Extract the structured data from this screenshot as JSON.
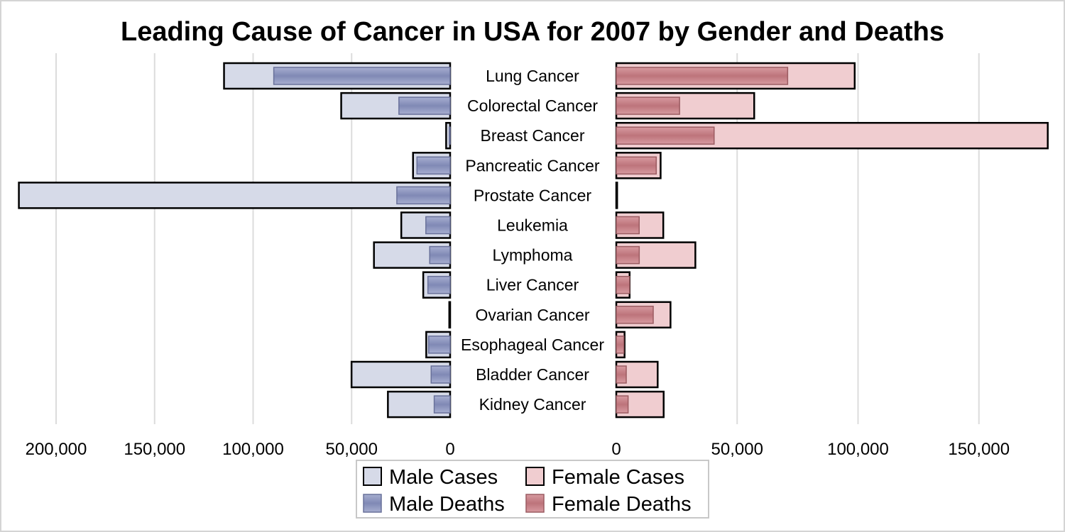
{
  "chart_data": {
    "type": "bar",
    "title": "Leading Cause of Cancer in USA for 2007 by Gender and Deaths",
    "categories": [
      "Lung Cancer",
      "Colorectal Cancer",
      "Breast Cancer",
      "Pancreatic Cancer",
      "Prostate Cancer",
      "Leukemia",
      "Lymphoma",
      "Liver Cancer",
      "Ovarian Cancer",
      "Esophageal Cancer",
      "Bladder Cancer",
      "Kidney Cancer"
    ],
    "series": [
      {
        "name": "Male Cases",
        "side": "left",
        "color": "#d6dae8",
        "values": [
          114760,
          55290,
          2030,
          18830,
          218890,
          24800,
          38670,
          13650,
          0,
          12130,
          50040,
          31590
        ]
      },
      {
        "name": "Male Deaths",
        "side": "left",
        "color": "#8d96bd",
        "values": [
          89510,
          26000,
          450,
          16840,
          27050,
          12320,
          10370,
          11280,
          0,
          10900,
          9630,
          8080
        ]
      },
      {
        "name": "Female Cases",
        "side": "right",
        "color": "#f0cdd0",
        "values": [
          98620,
          57050,
          178480,
          18340,
          0,
          19440,
          32710,
          5510,
          22430,
          3430,
          17120,
          19600
        ]
      },
      {
        "name": "Female Deaths",
        "side": "right",
        "color": "#c48288",
        "values": [
          70880,
          26180,
          40460,
          16530,
          0,
          9470,
          9500,
          5500,
          15280,
          3130,
          4120,
          4890
        ]
      }
    ],
    "left_axis": {
      "ticks": [
        "200,000",
        "150,000",
        "100,000",
        "50,000",
        "0"
      ],
      "tick_values": [
        200000,
        150000,
        100000,
        50000,
        0
      ],
      "reversed": true
    },
    "right_axis": {
      "ticks": [
        "0",
        "50,000",
        "100,000",
        "150,000"
      ],
      "tick_values": [
        0,
        50000,
        100000,
        150000
      ]
    },
    "grid": true,
    "legend": {
      "placement": "bottom-center",
      "items": [
        "Male Cases",
        "Female Cases",
        "Male Deaths",
        "Female Deaths"
      ]
    }
  }
}
